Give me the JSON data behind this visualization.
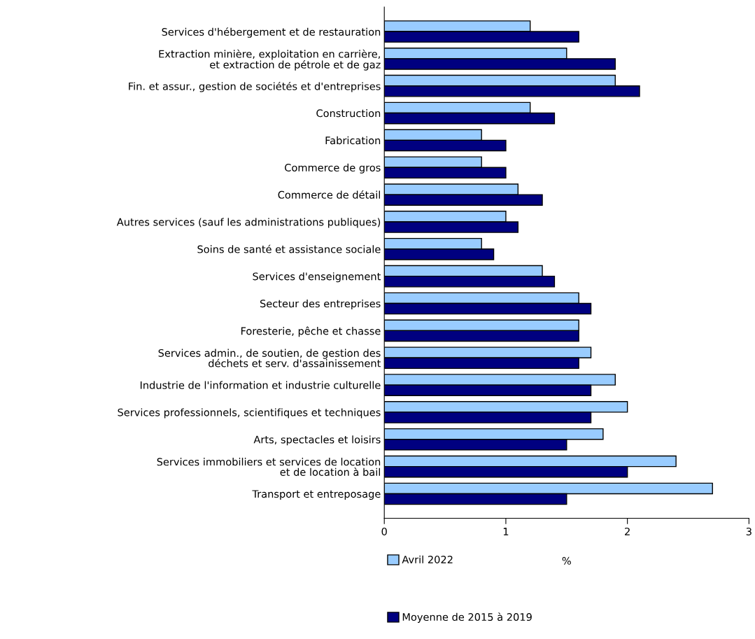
{
  "chart_data": {
    "type": "bar",
    "orientation": "horizontal",
    "xlabel": "%",
    "categories": [
      "Services d'hébergement et de restauration",
      "Extraction minière, exploitation en carrière,\net extraction de pétrole et de gaz",
      "Fin. et assur., gestion de sociétés et d'entreprises",
      "Construction",
      "Fabrication",
      "Commerce de gros",
      "Commerce de détail",
      "Autres services (sauf les administrations publiques)",
      "Soins de santé et assistance sociale",
      "Services d'enseignement",
      "Secteur des entreprises",
      "Foresterie, pêche et chasse",
      "Services admin., de soutien, de gestion des\ndéchets et serv. d'assainissement",
      "Industrie de l'information et industrie culturelle",
      "Services professionnels, scientifiques et techniques",
      "Arts, spectacles et loisirs",
      "Services immobiliers et services de location\net de location à bail",
      "Transport et entreposage"
    ],
    "series": [
      {
        "name": "Avril 2022",
        "color": "#99ccff",
        "values": [
          1.2,
          1.5,
          1.9,
          1.2,
          0.8,
          0.8,
          1.1,
          1.0,
          0.8,
          1.3,
          1.6,
          1.6,
          1.7,
          1.9,
          2.0,
          1.8,
          2.4,
          2.7
        ]
      },
      {
        "name": "Moyenne de 2015 à 2019",
        "color": "#000080",
        "values": [
          1.6,
          1.9,
          2.1,
          1.4,
          1.0,
          1.0,
          1.3,
          1.1,
          0.9,
          1.4,
          1.7,
          1.6,
          1.6,
          1.7,
          1.7,
          1.5,
          2.0,
          1.5
        ]
      }
    ],
    "xlim": [
      0,
      3
    ],
    "xticks": [
      0,
      1,
      2,
      3
    ],
    "grid": false,
    "legend": "bottom"
  }
}
